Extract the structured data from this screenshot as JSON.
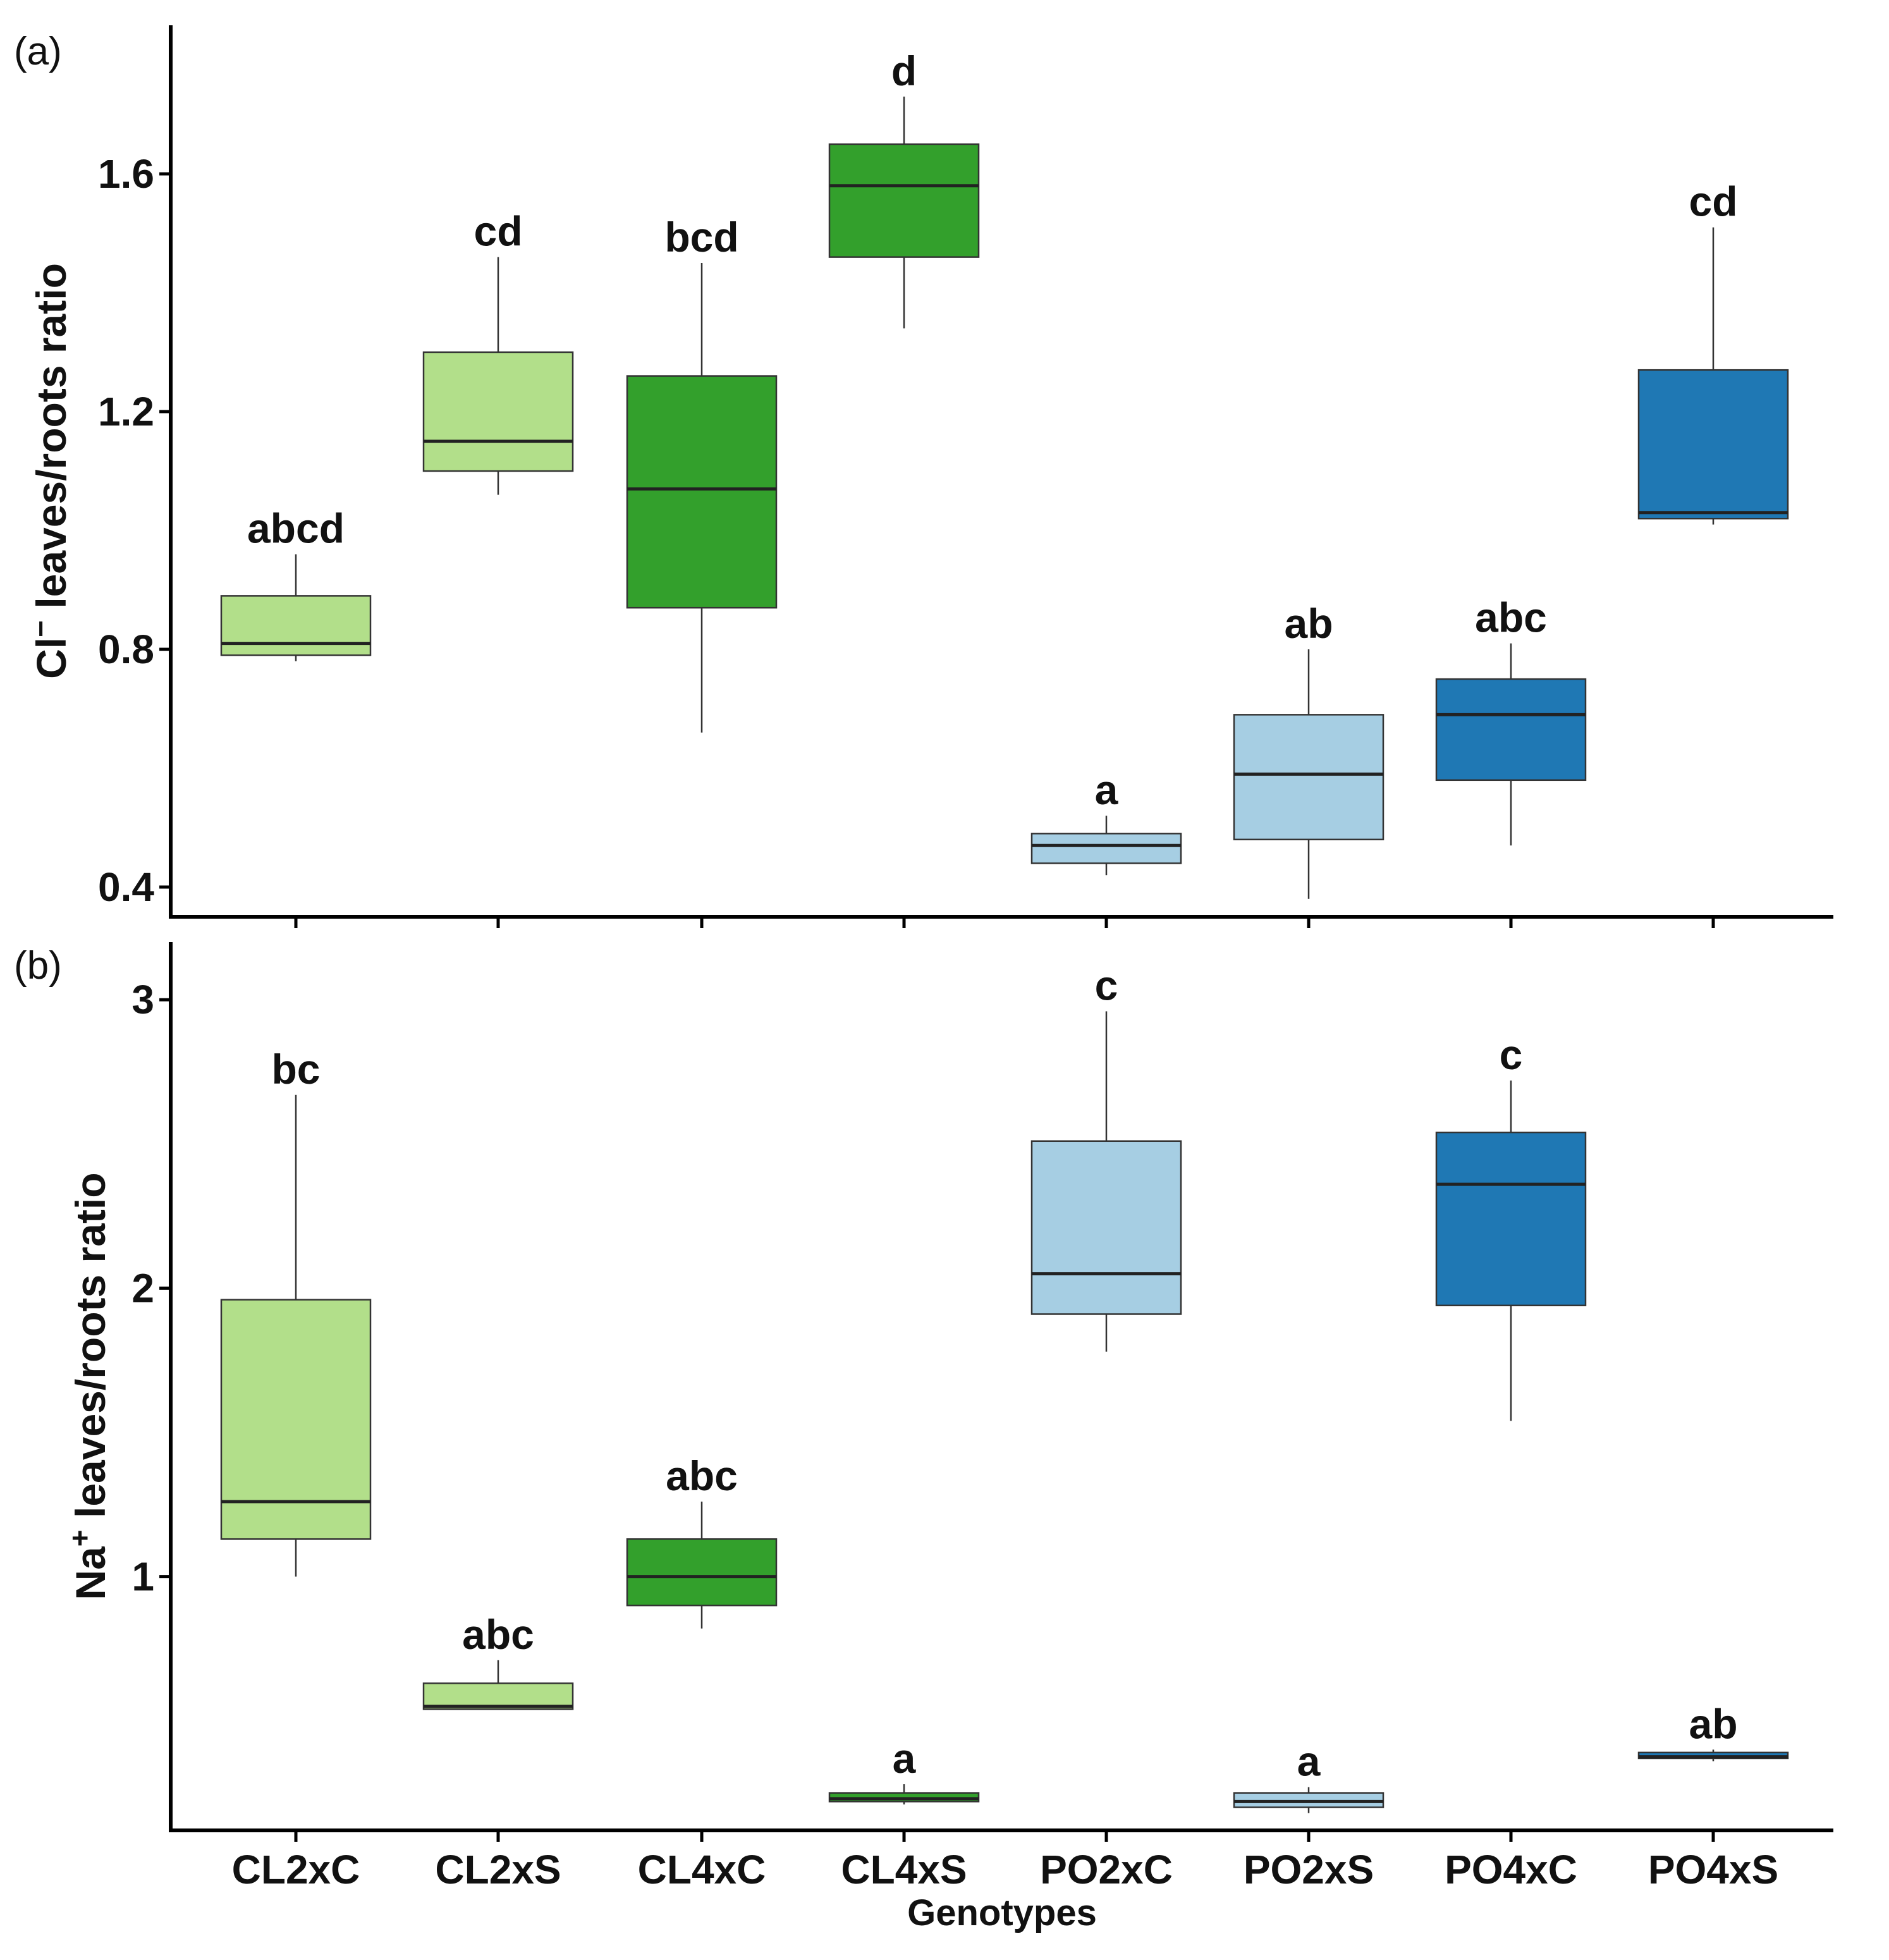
{
  "chart_data": [
    {
      "type": "boxplot",
      "panel_label": "(a)",
      "ylabel_prefix": "Cl",
      "ylabel_sup": "−",
      "ylabel_suffix": " leaves/roots ratio",
      "ylim": [
        0.35,
        1.85
      ],
      "yticks": [
        0.4,
        0.8,
        1.2,
        1.6
      ],
      "ytick_labels": [
        "0.4",
        "0.8",
        "1.2",
        "1.6"
      ],
      "categories": [
        "CL2xC",
        "CL2xS",
        "CL4xC",
        "CL4xS",
        "PO2xC",
        "PO2xS",
        "PO4xC",
        "PO4xS"
      ],
      "boxes": [
        {
          "group": "CL2xC",
          "min": 0.78,
          "q1": 0.79,
          "median": 0.81,
          "q3": 0.89,
          "max": 0.96,
          "letter": "abcd",
          "color": "#b2df8a"
        },
        {
          "group": "CL2xS",
          "min": 1.06,
          "q1": 1.1,
          "median": 1.15,
          "q3": 1.3,
          "max": 1.46,
          "letter": "cd",
          "color": "#b2df8a"
        },
        {
          "group": "CL4xC",
          "min": 0.66,
          "q1": 0.87,
          "median": 1.07,
          "q3": 1.26,
          "max": 1.45,
          "letter": "bcd",
          "color": "#33a02c"
        },
        {
          "group": "CL4xS",
          "min": 1.34,
          "q1": 1.46,
          "median": 1.58,
          "q3": 1.65,
          "max": 1.73,
          "letter": "d",
          "color": "#33a02c"
        },
        {
          "group": "PO2xC",
          "min": 0.42,
          "q1": 0.44,
          "median": 0.47,
          "q3": 0.49,
          "max": 0.52,
          "letter": "a",
          "color": "#a6cee3"
        },
        {
          "group": "PO2xS",
          "min": 0.38,
          "q1": 0.48,
          "median": 0.59,
          "q3": 0.69,
          "max": 0.8,
          "letter": "ab",
          "color": "#a6cee3"
        },
        {
          "group": "PO4xC",
          "min": 0.47,
          "q1": 0.58,
          "median": 0.69,
          "q3": 0.75,
          "max": 0.81,
          "letter": "abc",
          "color": "#1f78b4"
        },
        {
          "group": "PO4xS",
          "min": 1.01,
          "q1": 1.02,
          "median": 1.03,
          "q3": 1.27,
          "max": 1.51,
          "letter": "cd",
          "color": "#1f78b4"
        }
      ]
    },
    {
      "type": "boxplot",
      "panel_label": "(b)",
      "ylabel_prefix": "Na",
      "ylabel_sup": "+",
      "ylabel_suffix": " leaves/roots ratio",
      "xlabel": "Genotypes",
      "ylim": [
        0.12,
        3.2
      ],
      "yticks": [
        1,
        2,
        3
      ],
      "ytick_labels": [
        "1",
        "2",
        "3"
      ],
      "categories": [
        "CL2xC",
        "CL2xS",
        "CL4xC",
        "CL4xS",
        "PO2xC",
        "PO2xS",
        "PO4xC",
        "PO4xS"
      ],
      "boxes": [
        {
          "group": "CL2xC",
          "min": 1.0,
          "q1": 1.13,
          "median": 1.26,
          "q3": 1.96,
          "max": 2.67,
          "letter": "bc",
          "color": "#b2df8a"
        },
        {
          "group": "CL2xS",
          "min": 0.54,
          "q1": 0.54,
          "median": 0.55,
          "q3": 0.63,
          "max": 0.71,
          "letter": "abc",
          "color": "#b2df8a"
        },
        {
          "group": "CL4xC",
          "min": 0.82,
          "q1": 0.9,
          "median": 1.0,
          "q3": 1.13,
          "max": 1.26,
          "letter": "abc",
          "color": "#33a02c"
        },
        {
          "group": "CL4xS",
          "min": 0.21,
          "q1": 0.22,
          "median": 0.23,
          "q3": 0.25,
          "max": 0.28,
          "letter": "a",
          "color": "#33a02c"
        },
        {
          "group": "PO2xC",
          "min": 1.78,
          "q1": 1.91,
          "median": 2.05,
          "q3": 2.51,
          "max": 2.96,
          "letter": "c",
          "color": "#a6cee3"
        },
        {
          "group": "PO2xS",
          "min": 0.18,
          "q1": 0.2,
          "median": 0.22,
          "q3": 0.25,
          "max": 0.27,
          "letter": "a",
          "color": "#a6cee3"
        },
        {
          "group": "PO4xC",
          "min": 1.54,
          "q1": 1.94,
          "median": 2.36,
          "q3": 2.54,
          "max": 2.72,
          "letter": "c",
          "color": "#1f78b4"
        },
        {
          "group": "PO4xS",
          "min": 0.36,
          "q1": 0.37,
          "median": 0.375,
          "q3": 0.39,
          "max": 0.4,
          "letter": "ab",
          "color": "#1f78b4"
        }
      ]
    }
  ]
}
